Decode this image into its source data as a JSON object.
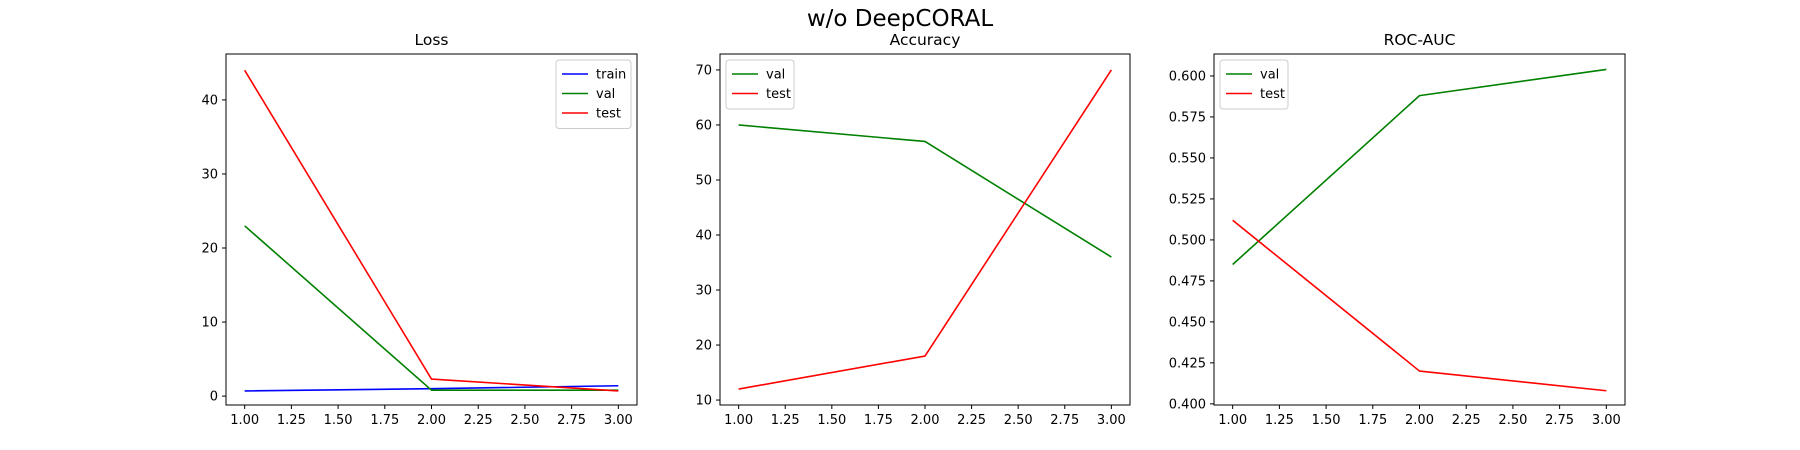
{
  "figure": {
    "suptitle": "w/o DeepCORAL"
  },
  "chart_data": [
    {
      "type": "line",
      "title": "Loss",
      "xlabel": "",
      "ylabel": "",
      "x": [
        1.0,
        2.0,
        3.0
      ],
      "xlim": [
        0.9,
        3.1
      ],
      "ylim": [
        -1.2,
        46.2
      ],
      "xticks": [
        1.0,
        1.25,
        1.5,
        1.75,
        2.0,
        2.25,
        2.5,
        2.75,
        3.0
      ],
      "xtick_labels": [
        "1.00",
        "1.25",
        "1.50",
        "1.75",
        "2.00",
        "2.25",
        "2.50",
        "2.75",
        "3.00"
      ],
      "yticks": [
        0,
        10,
        20,
        30,
        40
      ],
      "ytick_labels": [
        "0",
        "10",
        "20",
        "30",
        "40"
      ],
      "legend": "top-right",
      "grid": false,
      "series": [
        {
          "name": "train",
          "color": "#0000ff",
          "values": [
            0.7,
            1.0,
            1.4
          ]
        },
        {
          "name": "val",
          "color": "#008000",
          "values": [
            23.0,
            0.8,
            0.8
          ]
        },
        {
          "name": "test",
          "color": "#ff0000",
          "values": [
            44.0,
            2.3,
            0.7
          ]
        }
      ]
    },
    {
      "type": "line",
      "title": "Accuracy",
      "xlabel": "",
      "ylabel": "",
      "x": [
        1.0,
        2.0,
        3.0
      ],
      "xlim": [
        0.9,
        3.1
      ],
      "ylim": [
        9.1,
        72.9
      ],
      "xticks": [
        1.0,
        1.25,
        1.5,
        1.75,
        2.0,
        2.25,
        2.5,
        2.75,
        3.0
      ],
      "xtick_labels": [
        "1.00",
        "1.25",
        "1.50",
        "1.75",
        "2.00",
        "2.25",
        "2.50",
        "2.75",
        "3.00"
      ],
      "yticks": [
        10,
        20,
        30,
        40,
        50,
        60,
        70
      ],
      "ytick_labels": [
        "10",
        "20",
        "30",
        "40",
        "50",
        "60",
        "70"
      ],
      "legend": "top-left",
      "grid": false,
      "series": [
        {
          "name": "val",
          "color": "#008000",
          "values": [
            60.0,
            57.0,
            36.0
          ]
        },
        {
          "name": "test",
          "color": "#ff0000",
          "values": [
            12.0,
            18.0,
            70.0
          ]
        }
      ]
    },
    {
      "type": "line",
      "title": "ROC-AUC",
      "xlabel": "",
      "ylabel": "",
      "x": [
        1.0,
        2.0,
        3.0
      ],
      "xlim": [
        0.9,
        3.1
      ],
      "ylim": [
        0.3993,
        0.6134
      ],
      "xticks": [
        1.0,
        1.25,
        1.5,
        1.75,
        2.0,
        2.25,
        2.5,
        2.75,
        3.0
      ],
      "xtick_labels": [
        "1.00",
        "1.25",
        "1.50",
        "1.75",
        "2.00",
        "2.25",
        "2.50",
        "2.75",
        "3.00"
      ],
      "yticks": [
        0.4,
        0.425,
        0.45,
        0.475,
        0.5,
        0.525,
        0.55,
        0.575,
        0.6
      ],
      "ytick_labels": [
        "0.400",
        "0.425",
        "0.450",
        "0.475",
        "0.500",
        "0.525",
        "0.550",
        "0.575",
        "0.600"
      ],
      "legend": "top-left",
      "grid": false,
      "series": [
        {
          "name": "val",
          "color": "#008000",
          "values": [
            0.485,
            0.588,
            0.604
          ]
        },
        {
          "name": "test",
          "color": "#ff0000",
          "values": [
            0.512,
            0.42,
            0.408
          ]
        }
      ]
    }
  ]
}
